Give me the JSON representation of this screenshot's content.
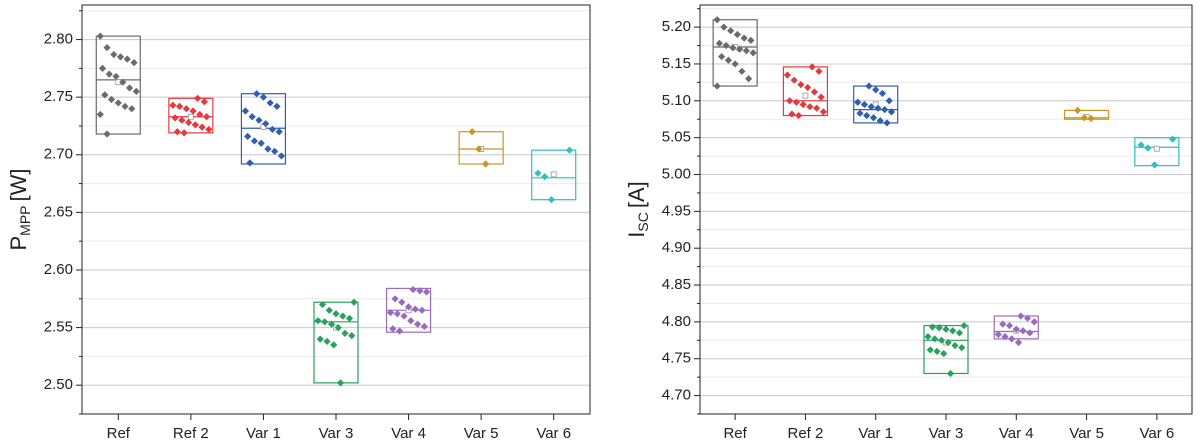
{
  "chart_data": [
    {
      "type": "box",
      "ylabel": {
        "main": "P",
        "sub": "MPP",
        "unit": "[W]"
      },
      "categories": [
        "Ref",
        "Ref 2",
        "Var 1",
        "Var 3",
        "Var 4",
        "Var 5",
        "Var 6"
      ],
      "colors": [
        "#6b6b6b",
        "#e23a3f",
        "#2f5fae",
        "#2aa05c",
        "#9a6bbd",
        "#c8971d",
        "#2dbfc4"
      ],
      "ylim": [
        2.475,
        2.83
      ],
      "yticks": [
        {
          "value": 2.5,
          "label": "2.50"
        },
        {
          "value": 2.55,
          "label": "2.55"
        },
        {
          "value": 2.6,
          "label": "2.60"
        },
        {
          "value": 2.65,
          "label": "2.65"
        },
        {
          "value": 2.7,
          "label": "2.70"
        },
        {
          "value": 2.75,
          "label": "2.75"
        },
        {
          "value": 2.8,
          "label": "2.80"
        }
      ],
      "minor_yticks": [
        2.475,
        2.525,
        2.575,
        2.625,
        2.675,
        2.725,
        2.775,
        2.825
      ],
      "grid": true,
      "boxes": [
        {
          "low": 2.718,
          "high": 2.803,
          "median": 2.765,
          "mean": 2.763,
          "points": [
            2.803,
            2.793,
            2.787,
            2.785,
            2.783,
            2.78,
            2.775,
            2.77,
            2.768,
            2.763,
            2.758,
            2.755,
            2.752,
            2.748,
            2.745,
            2.742,
            2.74,
            2.735,
            2.718
          ]
        },
        {
          "low": 2.719,
          "high": 2.749,
          "median": 2.733,
          "mean": 2.733,
          "points": [
            2.749,
            2.746,
            2.743,
            2.742,
            2.74,
            2.738,
            2.735,
            2.733,
            2.732,
            2.73,
            2.728,
            2.726,
            2.724,
            2.722,
            2.72,
            2.719
          ]
        },
        {
          "low": 2.692,
          "high": 2.753,
          "median": 2.723,
          "mean": 2.724,
          "points": [
            2.753,
            2.75,
            2.745,
            2.742,
            2.738,
            2.733,
            2.73,
            2.727,
            2.722,
            2.72,
            2.716,
            2.712,
            2.71,
            2.705,
            2.703,
            2.699,
            2.693
          ]
        },
        {
          "low": 2.502,
          "high": 2.572,
          "median": 2.555,
          "mean": 2.55,
          "points": [
            2.572,
            2.57,
            2.565,
            2.562,
            2.56,
            2.558,
            2.556,
            2.555,
            2.553,
            2.55,
            2.545,
            2.543,
            2.54,
            2.538,
            2.535,
            2.502
          ]
        },
        {
          "low": 2.546,
          "high": 2.584,
          "median": 2.565,
          "mean": 2.565,
          "points": [
            2.583,
            2.582,
            2.581,
            2.575,
            2.572,
            2.568,
            2.566,
            2.565,
            2.563,
            2.562,
            2.56,
            2.556,
            2.553,
            2.551,
            2.549,
            2.547
          ]
        },
        {
          "low": 2.692,
          "high": 2.72,
          "median": 2.705,
          "mean": 2.705,
          "points": [
            2.72,
            2.705,
            2.692
          ]
        },
        {
          "low": 2.661,
          "high": 2.704,
          "median": 2.68,
          "mean": 2.683,
          "points": [
            2.704,
            2.684,
            2.681,
            2.661
          ]
        }
      ]
    },
    {
      "type": "box",
      "ylabel": {
        "main": "I",
        "sub": "SC",
        "unit": "[A]"
      },
      "categories": [
        "Ref",
        "Ref 2",
        "Var 1",
        "Var 3",
        "Var 4",
        "Var 5",
        "Var 6"
      ],
      "colors": [
        "#6b6b6b",
        "#e23a3f",
        "#2f5fae",
        "#2aa05c",
        "#9a6bbd",
        "#c8971d",
        "#2dbfc4"
      ],
      "ylim": [
        4.675,
        5.23
      ],
      "yticks": [
        {
          "value": 4.7,
          "label": "4.70"
        },
        {
          "value": 4.75,
          "label": "4.75"
        },
        {
          "value": 4.8,
          "label": "4.80"
        },
        {
          "value": 4.85,
          "label": "4.85"
        },
        {
          "value": 4.9,
          "label": "4.90"
        },
        {
          "value": 4.95,
          "label": "4.95"
        },
        {
          "value": 5.0,
          "label": "5.00"
        },
        {
          "value": 5.05,
          "label": "5.05"
        },
        {
          "value": 5.1,
          "label": "5.10"
        },
        {
          "value": 5.15,
          "label": "5.15"
        },
        {
          "value": 5.2,
          "label": "5.20"
        }
      ],
      "minor_yticks": [
        4.675,
        4.725,
        4.775,
        4.825,
        4.875,
        4.925,
        4.975,
        5.025,
        5.075,
        5.125,
        5.175,
        5.225
      ],
      "grid": true,
      "boxes": [
        {
          "low": 5.12,
          "high": 5.21,
          "median": 5.173,
          "mean": 5.173,
          "points": [
            5.21,
            5.2,
            5.195,
            5.19,
            5.185,
            5.182,
            5.178,
            5.175,
            5.172,
            5.17,
            5.168,
            5.165,
            5.16,
            5.155,
            5.15,
            5.14,
            5.13,
            5.12
          ]
        },
        {
          "low": 5.08,
          "high": 5.146,
          "median": 5.1,
          "mean": 5.107,
          "points": [
            5.146,
            5.14,
            5.135,
            5.128,
            5.122,
            5.118,
            5.112,
            5.105,
            5.1,
            5.098,
            5.095,
            5.092,
            5.09,
            5.085,
            5.082,
            5.08
          ]
        },
        {
          "low": 5.07,
          "high": 5.12,
          "median": 5.088,
          "mean": 5.095,
          "points": [
            5.12,
            5.115,
            5.11,
            5.1,
            5.098,
            5.095,
            5.092,
            5.09,
            5.088,
            5.085,
            5.083,
            5.08,
            5.077,
            5.073,
            5.07
          ]
        },
        {
          "low": 4.73,
          "high": 4.795,
          "median": 4.775,
          "mean": 4.772,
          "points": [
            4.795,
            4.793,
            4.792,
            4.79,
            4.788,
            4.785,
            4.78,
            4.777,
            4.775,
            4.772,
            4.768,
            4.765,
            4.762,
            4.76,
            4.757,
            4.73
          ]
        },
        {
          "low": 4.777,
          "high": 4.808,
          "median": 4.787,
          "mean": 4.788,
          "points": [
            4.808,
            4.805,
            4.8,
            4.797,
            4.795,
            4.79,
            4.788,
            4.785,
            4.783,
            4.78,
            4.777,
            4.772
          ]
        },
        {
          "low": 5.075,
          "high": 5.087,
          "median": 5.077,
          "mean": 5.078,
          "points": [
            5.087,
            5.077,
            5.076
          ]
        },
        {
          "low": 5.012,
          "high": 5.05,
          "median": 5.037,
          "mean": 5.035,
          "points": [
            5.048,
            5.04,
            5.036,
            5.013
          ]
        }
      ]
    }
  ]
}
